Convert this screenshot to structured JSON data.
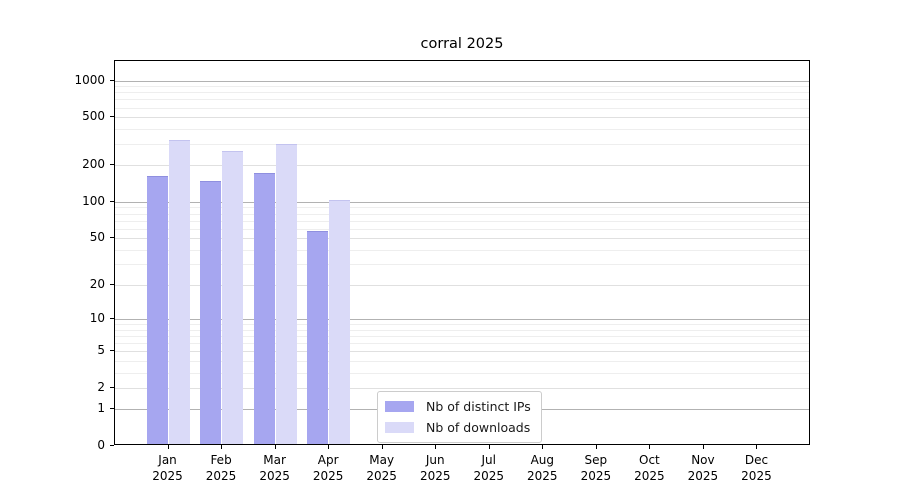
{
  "title": "corral 2025",
  "chart_data": {
    "type": "bar",
    "title": "corral 2025",
    "y_scale": "log1p",
    "xlabel": "",
    "ylabel": "",
    "categories": [
      "Jan",
      "Feb",
      "Mar",
      "Apr",
      "May",
      "Jun",
      "Jul",
      "Aug",
      "Sep",
      "Oct",
      "Nov",
      "Dec"
    ],
    "category_year": "2025",
    "series": [
      {
        "name": "Nb of distinct IPs",
        "color": "#a6a6f0",
        "edge": "#8f8fdf",
        "values": [
          165,
          150,
          172,
          57,
          null,
          null,
          null,
          null,
          null,
          null,
          null,
          null
        ]
      },
      {
        "name": "Nb of downloads",
        "color": "#dadaf8",
        "edge": "#c3c3ef",
        "values": [
          325,
          263,
          300,
          104,
          null,
          null,
          null,
          null,
          null,
          null,
          null,
          null
        ]
      }
    ],
    "y_ticks": [
      1000,
      500,
      200,
      100,
      50,
      20,
      10,
      5,
      2,
      1,
      0
    ],
    "ylim": [
      0,
      1450
    ],
    "grid": true,
    "legend_position": "bottom-center"
  },
  "legend": {
    "items": [
      {
        "label": "Nb of distinct IPs",
        "color": "#a6a6f0"
      },
      {
        "label": "Nb of downloads",
        "color": "#dadaf8"
      }
    ]
  },
  "colors": {
    "grid_major": "#b2b2b2",
    "grid_mid": "#e0e0e0",
    "grid_minor": "#eeeeee",
    "axis": "#000000",
    "background": "#ffffff"
  }
}
